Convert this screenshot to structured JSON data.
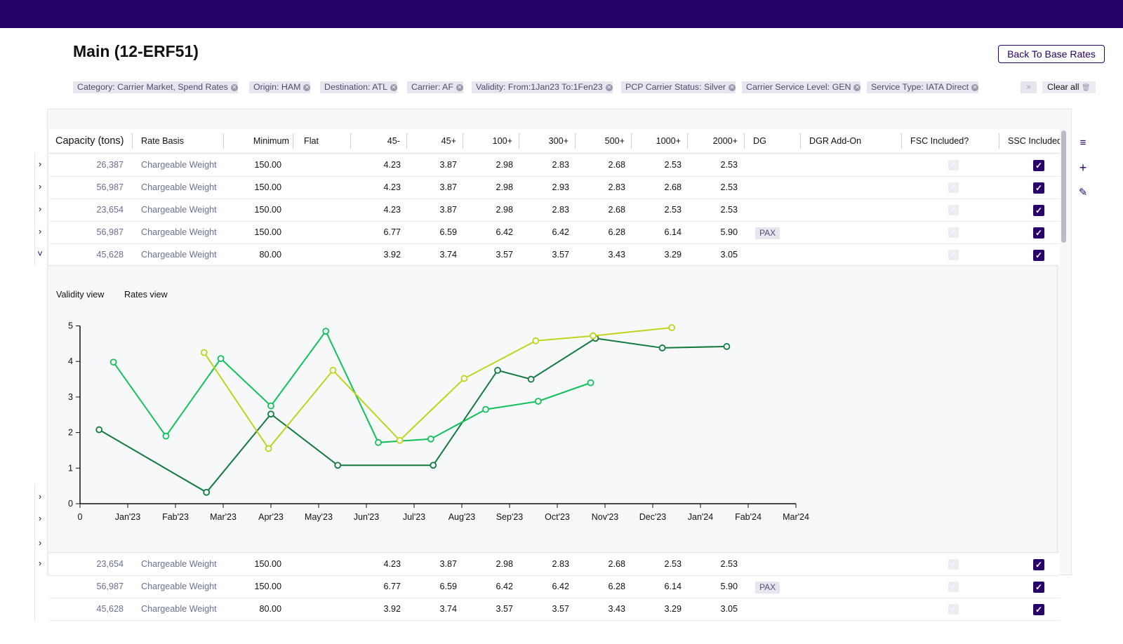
{
  "page": {
    "title": "Main (12-ERF51)",
    "back_button": "Back To Base Rates"
  },
  "filters": [
    {
      "label": "Category: Carrier Market, Spend Rates"
    },
    {
      "label": "Origin: HAM"
    },
    {
      "label": "Destination: ATL"
    },
    {
      "label": "Carrier: AF"
    },
    {
      "label": "Validity: From:1Jan23 To:1Fen23"
    },
    {
      "label": "PCP Carrier Status: Silver"
    },
    {
      "label": "Carrier Service Level: GEN"
    },
    {
      "label": "Service Type: IATA Direct"
    }
  ],
  "filter_ellipsis": "...",
  "filter_more": "»",
  "clear_all": "Clear all",
  "columns": [
    "Capacity (tons)",
    "Rate Basis",
    "Minimum",
    "Flat",
    "45-",
    "45+",
    "100+",
    "300+",
    "500+",
    "1000+",
    "2000+",
    "DG",
    "DGR Add-On",
    "FSC Included?",
    "SSC Included?"
  ],
  "rows_top": [
    {
      "capacity": "26,387",
      "basis": "Chargeable Weight",
      "minimum": "150.00",
      "rates": [
        "4.23",
        "3.87",
        "2.98",
        "2.83",
        "2.68",
        "2.53",
        "2.53"
      ],
      "dg": ""
    },
    {
      "capacity": "56,987",
      "basis": "Chargeable Weight",
      "minimum": "150.00",
      "rates": [
        "4.23",
        "3.87",
        "2.98",
        "2.93",
        "2.83",
        "2.68",
        "2.53"
      ],
      "dg": ""
    },
    {
      "capacity": "23,654",
      "basis": "Chargeable Weight",
      "minimum": "150.00",
      "rates": [
        "4.23",
        "3.87",
        "2.98",
        "2.83",
        "2.68",
        "2.53",
        "2.53"
      ],
      "dg": ""
    },
    {
      "capacity": "56,987",
      "basis": "Chargeable Weight",
      "minimum": "150.00",
      "rates": [
        "6.77",
        "6.59",
        "6.42",
        "6.42",
        "6.28",
        "6.14",
        "5.90"
      ],
      "dg": "PAX"
    },
    {
      "capacity": "45,628",
      "basis": "Chargeable Weight",
      "minimum": "80.00",
      "rates": [
        "3.92",
        "3.74",
        "3.57",
        "3.57",
        "3.43",
        "3.29",
        "3.05"
      ],
      "dg": ""
    }
  ],
  "rows_bottom": [
    {
      "capacity": "23,654",
      "basis": "Chargeable Weight",
      "minimum": "150.00",
      "rates": [
        "4.23",
        "3.87",
        "2.98",
        "2.83",
        "2.68",
        "2.53",
        "2.53"
      ],
      "dg": ""
    },
    {
      "capacity": "56,987",
      "basis": "Chargeable Weight",
      "minimum": "150.00",
      "rates": [
        "6.77",
        "6.59",
        "6.42",
        "6.42",
        "6.28",
        "6.14",
        "5.90"
      ],
      "dg": "PAX"
    },
    {
      "capacity": "45,628",
      "basis": "Chargeable Weight",
      "minimum": "80.00",
      "rates": [
        "3.92",
        "3.74",
        "3.57",
        "3.57",
        "3.43",
        "3.29",
        "3.05"
      ],
      "dg": ""
    }
  ],
  "tabs": {
    "validity": "Validity view",
    "rates": "Rates view"
  },
  "icons": [
    "filter-icon",
    "plus-icon",
    "pencil-icon",
    "chevron-right-icon",
    "chevron-down-icon",
    "close-icon",
    "trash-icon"
  ],
  "colors": {
    "brand": "#260068",
    "series_dark": "#127a3e",
    "series_mid": "#12c15a",
    "series_lime": "#c2d21a"
  },
  "chart_data": {
    "type": "line",
    "title": "",
    "xlabel": "",
    "ylabel": "",
    "x_ticks": [
      "0",
      "Jan'23",
      "Fab'23",
      "Mar'23",
      "Apr'23",
      "May'23",
      "Jun'23",
      "Jul'23",
      "Aug'23",
      "Sep'23",
      "Oct'23",
      "Nov'23",
      "Dec'23",
      "Jan'24",
      "Fab'24",
      "Mar'24"
    ],
    "xlim": [
      0,
      15
    ],
    "ylim": [
      0,
      5
    ],
    "y_ticks": [
      0,
      1,
      2,
      3,
      4,
      5
    ],
    "grid": false,
    "series": [
      {
        "color": "#127a3e",
        "points": [
          [
            0.4,
            2.08
          ],
          [
            2.65,
            0.32
          ],
          [
            4.0,
            2.52
          ],
          [
            5.4,
            1.08
          ],
          [
            7.4,
            1.08
          ],
          [
            8.75,
            3.75
          ],
          [
            9.45,
            3.5
          ],
          [
            10.8,
            4.65
          ],
          [
            12.2,
            4.38
          ],
          [
            13.55,
            4.42
          ]
        ]
      },
      {
        "color": "#12c15a",
        "points": [
          [
            0.7,
            3.98
          ],
          [
            1.8,
            1.9
          ],
          [
            2.95,
            4.08
          ],
          [
            4.0,
            2.75
          ],
          [
            5.15,
            4.85
          ],
          [
            6.25,
            1.72
          ],
          [
            7.35,
            1.82
          ],
          [
            8.5,
            2.65
          ],
          [
            9.6,
            2.88
          ],
          [
            10.7,
            3.4
          ]
        ]
      },
      {
        "color": "#c2d21a",
        "points": [
          [
            2.6,
            4.25
          ],
          [
            3.95,
            1.55
          ],
          [
            5.3,
            3.75
          ],
          [
            6.7,
            1.78
          ],
          [
            8.05,
            3.52
          ],
          [
            9.55,
            4.58
          ],
          [
            10.75,
            4.72
          ],
          [
            12.4,
            4.95
          ]
        ]
      }
    ]
  }
}
